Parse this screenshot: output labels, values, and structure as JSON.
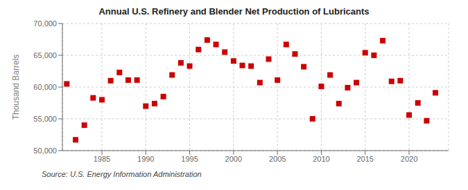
{
  "chart_data": {
    "type": "scatter",
    "title": "Annual U.S. Refinery and Blender Net Production of Lubricants",
    "y_label": "Thousand Barrels",
    "annotations": [
      "Source: U.S. Energy Information Administration"
    ],
    "x": [
      1981,
      1982,
      1983,
      1984,
      1985,
      1986,
      1987,
      1988,
      1989,
      1990,
      1991,
      1992,
      1993,
      1994,
      1995,
      1996,
      1997,
      1998,
      1999,
      2000,
      2001,
      2002,
      2003,
      2004,
      2005,
      2006,
      2007,
      2008,
      2009,
      2010,
      2011,
      2012,
      2013,
      2014,
      2015,
      2016,
      2017,
      2018,
      2019,
      2020,
      2021,
      2022,
      2023
    ],
    "values": [
      60500,
      51700,
      54000,
      58300,
      58000,
      61000,
      62300,
      61100,
      61100,
      57000,
      57400,
      58500,
      61900,
      63800,
      63300,
      65900,
      67400,
      66700,
      65500,
      64100,
      63400,
      63300,
      60700,
      64400,
      61100,
      66700,
      65200,
      63200,
      55000,
      60100,
      61900,
      57400,
      59900,
      60700,
      65400,
      65000,
      67300,
      60900,
      61000,
      55600,
      57500,
      54700,
      59100
    ],
    "color": "#cc0000",
    "marker": "square",
    "xlim": [
      1980.5,
      2024.5
    ],
    "xticks": [
      1985,
      1990,
      1995,
      2000,
      2005,
      2010,
      2015,
      2020
    ],
    "ylim": [
      50000,
      70000
    ],
    "yticks": [
      {
        "value": 50000,
        "label": "50,000"
      },
      {
        "value": 55000,
        "label": "55,000"
      },
      {
        "value": 60000,
        "label": "60,000"
      },
      {
        "value": 65000,
        "label": "65,000"
      },
      {
        "value": 70000,
        "label": "70,000"
      }
    ],
    "grid": true
  }
}
